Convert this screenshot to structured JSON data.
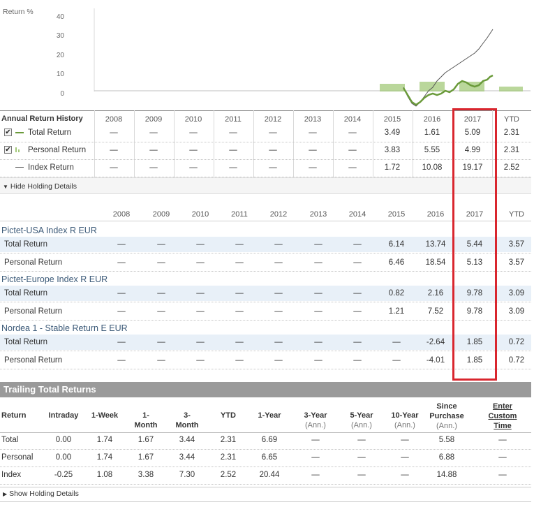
{
  "chart": {
    "y_axis_label": "Return %",
    "y_ticks": [
      "40",
      "30",
      "20",
      "10",
      "0"
    ],
    "series_colors": {
      "total": "#6a9a3a",
      "personal": "#a3c97a",
      "index": "#555555"
    }
  },
  "history": {
    "header_label": "Annual Return History",
    "years": [
      "2008",
      "2009",
      "2010",
      "2011",
      "2012",
      "2013",
      "2014",
      "2015",
      "2016",
      "2017",
      "YTD"
    ],
    "rows": [
      {
        "label": "Total Return",
        "checked": true,
        "values": [
          "—",
          "—",
          "—",
          "—",
          "—",
          "—",
          "—",
          "3.49",
          "1.61",
          "5.09",
          "2.31"
        ]
      },
      {
        "label": "Personal Return",
        "checked": true,
        "values": [
          "—",
          "—",
          "—",
          "—",
          "—",
          "—",
          "—",
          "3.83",
          "5.55",
          "4.99",
          "2.31"
        ]
      },
      {
        "label": "Index Return",
        "checked": false,
        "values": [
          "—",
          "—",
          "—",
          "—",
          "—",
          "—",
          "—",
          "1.72",
          "10.08",
          "19.17",
          "2.52"
        ]
      }
    ],
    "hide_details_label": "Hide Holding Details"
  },
  "holdings": {
    "years": [
      "2008",
      "2009",
      "2010",
      "2011",
      "2012",
      "2013",
      "2014",
      "2015",
      "2016",
      "2017",
      "YTD"
    ],
    "groups": [
      {
        "name": "Pictet-USA Index R EUR",
        "rows": [
          {
            "label": "Total Return",
            "values": [
              "—",
              "—",
              "—",
              "—",
              "—",
              "—",
              "—",
              "6.14",
              "13.74",
              "5.44",
              "3.57"
            ]
          },
          {
            "label": "Personal Return",
            "values": [
              "—",
              "—",
              "—",
              "—",
              "—",
              "—",
              "—",
              "6.46",
              "18.54",
              "5.13",
              "3.57"
            ]
          }
        ]
      },
      {
        "name": "Pictet-Europe Index R EUR",
        "rows": [
          {
            "label": "Total Return",
            "values": [
              "—",
              "—",
              "—",
              "—",
              "—",
              "—",
              "—",
              "0.82",
              "2.16",
              "9.78",
              "3.09"
            ]
          },
          {
            "label": "Personal Return",
            "values": [
              "—",
              "—",
              "—",
              "—",
              "—",
              "—",
              "—",
              "1.21",
              "7.52",
              "9.78",
              "3.09"
            ]
          }
        ]
      },
      {
        "name": "Nordea 1 - Stable Return E EUR",
        "rows": [
          {
            "label": "Total Return",
            "values": [
              "—",
              "—",
              "—",
              "—",
              "—",
              "—",
              "—",
              "—",
              "-2.64",
              "1.85",
              "0.72"
            ]
          },
          {
            "label": "Personal Return",
            "values": [
              "—",
              "—",
              "—",
              "—",
              "—",
              "—",
              "—",
              "—",
              "-4.01",
              "1.85",
              "0.72"
            ]
          }
        ]
      }
    ]
  },
  "trailing": {
    "title": "Trailing Total Returns",
    "columns": [
      {
        "line1": "",
        "line2": "Return"
      },
      {
        "line1": "",
        "line2": "Intraday"
      },
      {
        "line1": "",
        "line2": "1-Week"
      },
      {
        "line1": "1-",
        "line2": "Month"
      },
      {
        "line1": "3-",
        "line2": "Month"
      },
      {
        "line1": "",
        "line2": "YTD"
      },
      {
        "line1": "",
        "line2": "1-Year"
      },
      {
        "line1": "3-Year",
        "line2": "(Ann.)"
      },
      {
        "line1": "5-Year",
        "line2": "(Ann.)"
      },
      {
        "line1": "10-Year",
        "line2": "(Ann.)"
      },
      {
        "line1": "Since",
        "line2": "Purchase",
        "line3": "(Ann.)"
      },
      {
        "line1": "Enter",
        "line2": "Custom",
        "line3": "Time"
      }
    ],
    "rows": [
      {
        "label": "Total",
        "values": [
          "0.00",
          "1.74",
          "1.67",
          "3.44",
          "2.31",
          "6.69",
          "—",
          "—",
          "—",
          "5.58",
          "—"
        ]
      },
      {
        "label": "Personal",
        "values": [
          "0.00",
          "1.74",
          "1.67",
          "3.44",
          "2.31",
          "6.65",
          "—",
          "—",
          "—",
          "6.88",
          "—"
        ]
      },
      {
        "label": "Index",
        "values": [
          "-0.25",
          "1.08",
          "3.38",
          "7.30",
          "2.52",
          "20.44",
          "—",
          "—",
          "—",
          "14.88",
          "—"
        ]
      }
    ],
    "show_details_label": "Show Holding Details"
  },
  "highlight": {
    "color": "#d9262e"
  }
}
